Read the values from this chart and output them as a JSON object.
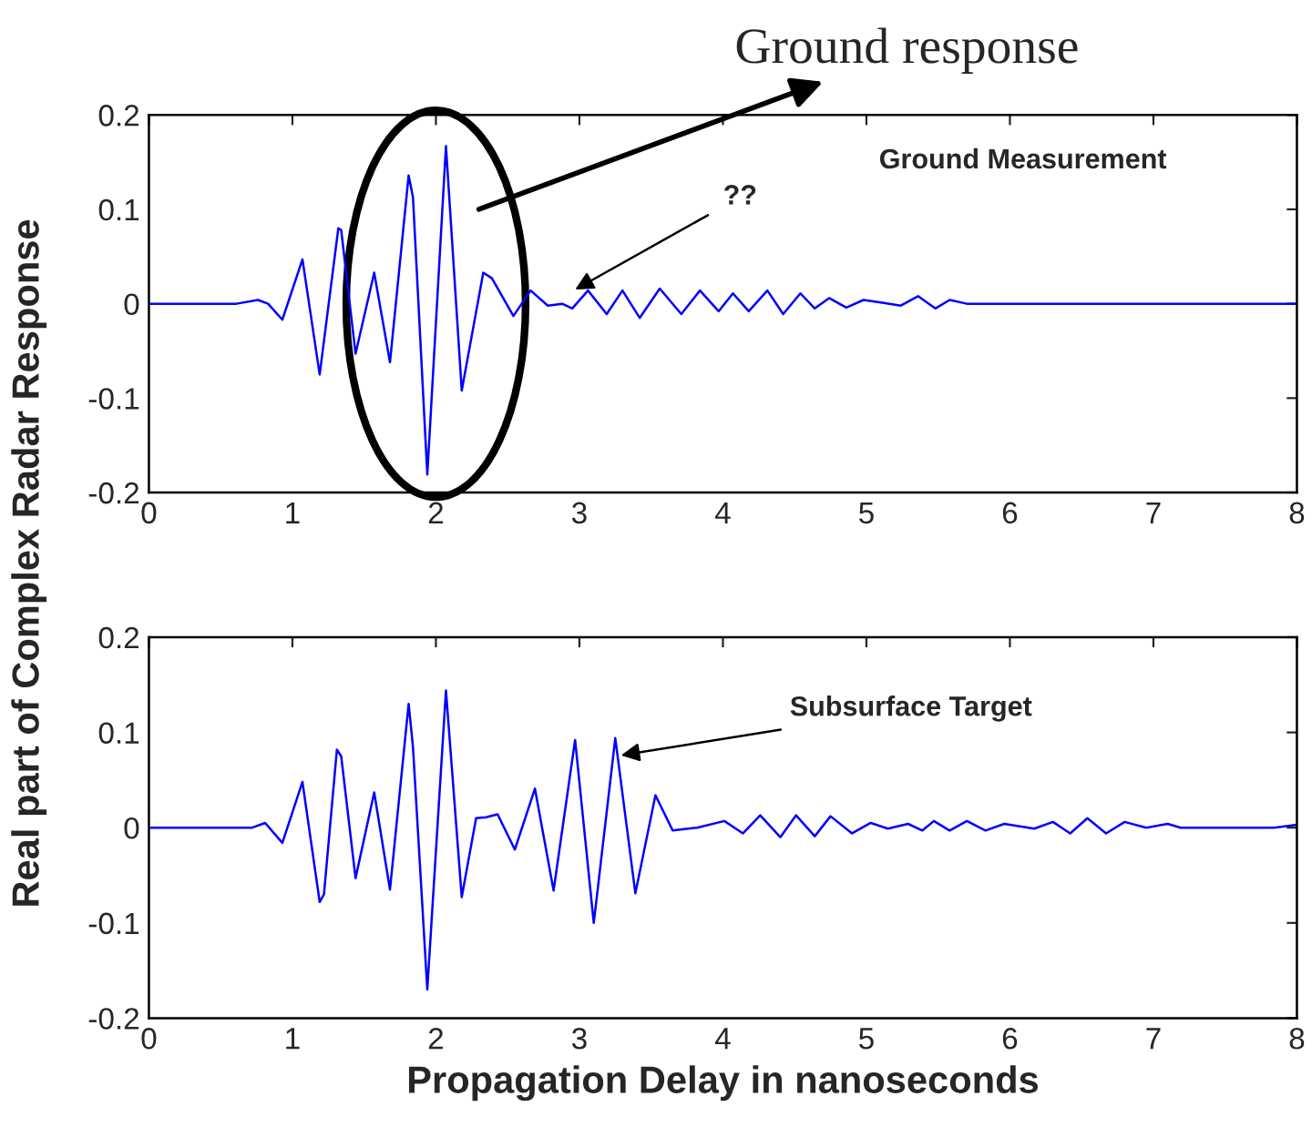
{
  "chart_data": [
    {
      "type": "line",
      "ylabel": "Real part of Complex Radar Response",
      "xlim": [
        0,
        8
      ],
      "ylim": [
        -0.2,
        0.2
      ],
      "xticks": [
        0,
        1,
        2,
        3,
        4,
        5,
        6,
        7,
        8
      ],
      "yticks": [
        -0.2,
        -0.1,
        0,
        0.1,
        0.2
      ],
      "grid": false,
      "legend": false,
      "marker": "none",
      "line_style": "solid",
      "series": [
        {
          "color": "#0000ff",
          "x": [
            0,
            0.61,
            0.76,
            0.83,
            0.93,
            1.07,
            1.19,
            1.32,
            1.34,
            1.44,
            1.57,
            1.68,
            1.81,
            1.84,
            1.94,
            2.07,
            2.18,
            2.33,
            2.39,
            2.54,
            2.66,
            2.78,
            2.88,
            2.95,
            3.06,
            3.19,
            3.3,
            3.42,
            3.56,
            3.71,
            3.84,
            3.97,
            4.07,
            4.18,
            4.31,
            4.42,
            4.54,
            4.64,
            4.74,
            4.86,
            4.98,
            5.11,
            5.24,
            5.36,
            5.48,
            5.58,
            5.7,
            6.0,
            7.0,
            8.0
          ],
          "values": [
            0,
            0,
            0.004,
            0,
            -0.017,
            0.047,
            -0.075,
            0.08,
            0.078,
            -0.053,
            0.033,
            -0.062,
            0.136,
            0.113,
            -0.181,
            0.167,
            -0.092,
            0.033,
            0.027,
            -0.013,
            0.014,
            -0.002,
            0,
            -0.005,
            0.014,
            -0.011,
            0.014,
            -0.015,
            0.016,
            -0.011,
            0.014,
            -0.008,
            0.011,
            -0.008,
            0.014,
            -0.011,
            0.011,
            -0.005,
            0.006,
            -0.004,
            0.004,
            0.001,
            -0.002,
            0.008,
            -0.005,
            0.004,
            0,
            0,
            0,
            0
          ]
        }
      ],
      "annotations": [
        "Ground response",
        "??",
        "Ground Measurement"
      ]
    },
    {
      "type": "line",
      "xlabel": "Propagation Delay in nanoseconds",
      "xlim": [
        0,
        8
      ],
      "ylim": [
        -0.2,
        0.2
      ],
      "xticks": [
        0,
        1,
        2,
        3,
        4,
        5,
        6,
        7,
        8
      ],
      "yticks": [
        -0.2,
        -0.1,
        0,
        0.1,
        0.2
      ],
      "grid": false,
      "legend": false,
      "marker": "none",
      "line_style": "solid",
      "series": [
        {
          "color": "#0000ff",
          "x": [
            0,
            0.72,
            0.81,
            0.93,
            1.07,
            1.19,
            1.22,
            1.31,
            1.34,
            1.44,
            1.57,
            1.68,
            1.81,
            1.84,
            1.94,
            2.07,
            2.18,
            2.28,
            2.35,
            2.43,
            2.55,
            2.69,
            2.82,
            2.97,
            3.1,
            3.25,
            3.39,
            3.53,
            3.65,
            3.82,
            4.01,
            4.14,
            4.26,
            4.4,
            4.51,
            4.64,
            4.75,
            4.9,
            5.03,
            5.15,
            5.29,
            5.39,
            5.47,
            5.58,
            5.7,
            5.83,
            5.96,
            6.17,
            6.3,
            6.42,
            6.54,
            6.67,
            6.8,
            6.95,
            7.1,
            7.19,
            7.84,
            8.0
          ],
          "values": [
            0,
            0,
            0.005,
            -0.016,
            0.048,
            -0.078,
            -0.07,
            0.082,
            0.075,
            -0.053,
            0.037,
            -0.065,
            0.13,
            0.085,
            -0.17,
            0.144,
            -0.073,
            0.01,
            0.011,
            0.014,
            -0.023,
            0.041,
            -0.066,
            0.092,
            -0.1,
            0.094,
            -0.069,
            0.034,
            -0.003,
            0,
            0.007,
            -0.006,
            0.013,
            -0.01,
            0.013,
            -0.009,
            0.012,
            -0.006,
            0.005,
            -0.001,
            0.004,
            -0.003,
            0.007,
            -0.003,
            0.007,
            -0.003,
            0.004,
            -0.001,
            0.006,
            -0.006,
            0.01,
            -0.006,
            0.006,
            0,
            0.004,
            0,
            0,
            0.003
          ]
        }
      ],
      "annotations": [
        {
          "text": "Subsurface Target",
          "x": 3.29,
          "y": 0.076
        }
      ]
    }
  ]
}
